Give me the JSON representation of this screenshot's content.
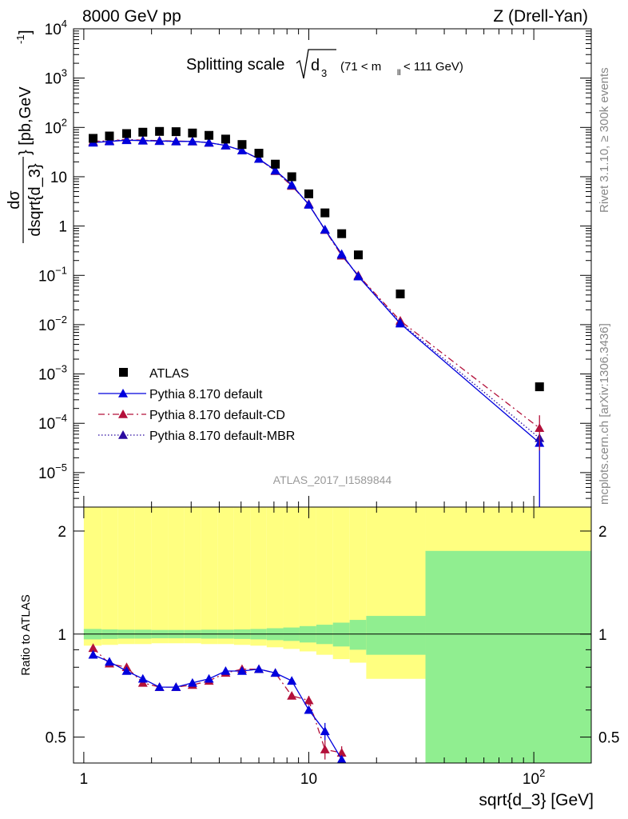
{
  "header": {
    "left": "8000 GeV pp",
    "right": "Z (Drell-Yan)"
  },
  "side_text": {
    "upper": "Rivet 3.1.10, ≥ 300k events",
    "lower": "mcplots.cern.ch [arXiv:1306.3436]"
  },
  "chart_data": [
    {
      "type": "scatter",
      "panel": "main",
      "title": "Splitting scale √d₃ (71 < mₗₗ < 111 GeV)",
      "title_parts": {
        "main": "Splitting scale",
        "sqrt_arg": "d",
        "sqrt_sub": "3",
        "cut_open": "(71 < m",
        "cut_sub": "ll",
        "cut_close": " < 111 GeV)"
      },
      "ylabel": "dσ / dsqrt{d_3} [pb,GeV⁻¹]",
      "ylabel_parts": {
        "num": "dσ",
        "den": "dsqrt{d_3}",
        "unit": "} [pb,GeV",
        "unit_sup": "-1",
        "unit_close": "]"
      },
      "xscale": "log",
      "yscale": "log",
      "xlim": [
        0.9,
        180
      ],
      "ylim": [
        2e-06,
        10000
      ],
      "legend_position": "center-left",
      "watermark": "ATLAS_2017_I1589844",
      "y_ticks": [
        {
          "v": 10000,
          "base": "10",
          "exp": "4"
        },
        {
          "v": 1000,
          "base": "10",
          "exp": "3"
        },
        {
          "v": 100,
          "base": "10",
          "exp": "2"
        },
        {
          "v": 10,
          "base": "10",
          "exp": ""
        },
        {
          "v": 1,
          "base": "1",
          "exp": ""
        },
        {
          "v": 0.1,
          "base": "10",
          "exp": "−1"
        },
        {
          "v": 0.01,
          "base": "10",
          "exp": "−2"
        },
        {
          "v": 0.001,
          "base": "10",
          "exp": "−3"
        },
        {
          "v": 0.0001,
          "base": "10",
          "exp": "−4"
        },
        {
          "v": 1e-05,
          "base": "10",
          "exp": "−5"
        }
      ],
      "series": [
        {
          "name": "ATLAS",
          "style": "data",
          "color": "#000000",
          "marker": "square",
          "x": [
            1.1,
            1.3,
            1.55,
            1.83,
            2.17,
            2.57,
            3.04,
            3.6,
            4.27,
            5.05,
            6.0,
            7.1,
            8.4,
            10.0,
            11.8,
            14.0,
            16.6,
            25.5,
            106
          ],
          "y": [
            60,
            67,
            75,
            80,
            83,
            82,
            77,
            69,
            58,
            45,
            30,
            18,
            10,
            4.5,
            1.85,
            0.7,
            0.26,
            0.042,
            0.00055
          ]
        },
        {
          "name": "Pythia 8.170 default",
          "style": "solid",
          "color": "#0000dd",
          "marker": "triangle",
          "x": [
            1.1,
            1.3,
            1.55,
            1.83,
            2.17,
            2.57,
            3.04,
            3.6,
            4.27,
            5.05,
            6.0,
            7.1,
            8.4,
            10.0,
            11.8,
            14.0,
            16.6,
            25.5,
            106
          ],
          "y": [
            49,
            52,
            55,
            54,
            53,
            52,
            52,
            49,
            43,
            34,
            23,
            13.5,
            6.9,
            2.7,
            0.85,
            0.27,
            0.095,
            0.0105,
            4e-05
          ]
        },
        {
          "name": "Pythia 8.170 default-CD",
          "style": "dashdot",
          "color": "#b3103a",
          "marker": "triangle",
          "x": [
            1.1,
            1.3,
            1.55,
            1.83,
            2.17,
            2.57,
            3.04,
            3.6,
            4.27,
            5.05,
            6.0,
            7.1,
            8.4,
            10.0,
            11.8,
            14.0,
            16.6,
            25.5,
            106
          ],
          "y": [
            52,
            54,
            57,
            55,
            54,
            53,
            52,
            49,
            43,
            34,
            23,
            13,
            6.5,
            2.8,
            0.83,
            0.25,
            0.1,
            0.012,
            8e-05
          ]
        },
        {
          "name": "Pythia 8.170 default-MBR",
          "style": "dotted",
          "color": "#2a0aa0",
          "marker": "triangle",
          "x": [
            1.1,
            1.3,
            1.55,
            1.83,
            2.17,
            2.57,
            3.04,
            3.6,
            4.27,
            5.05,
            6.0,
            7.1,
            8.4,
            10.0,
            11.8,
            14.0,
            16.6,
            25.5,
            106
          ],
          "y": [
            50,
            53,
            56,
            54,
            53,
            52,
            52,
            49,
            43,
            34,
            23,
            13.2,
            6.7,
            2.75,
            0.84,
            0.26,
            0.097,
            0.011,
            5e-05
          ]
        }
      ]
    },
    {
      "type": "scatter",
      "panel": "ratio",
      "xlabel": "sqrt{d_3} [GeV]",
      "ylabel": "Ratio to ATLAS",
      "xscale": "log",
      "yscale": "log",
      "xlim": [
        0.9,
        180
      ],
      "ylim": [
        0.42,
        2.35
      ],
      "x_ticks": [
        {
          "v": 1,
          "base": "1",
          "exp": ""
        },
        {
          "v": 10,
          "base": "10",
          "exp": ""
        },
        {
          "v": 100,
          "base": "10",
          "exp": "2"
        }
      ],
      "y_ticks": [
        {
          "v": 0.5,
          "label": "0.5"
        },
        {
          "v": 1,
          "label": "1"
        },
        {
          "v": 2,
          "label": "2"
        }
      ],
      "bands": {
        "x_edges": [
          1.0,
          1.2,
          1.42,
          1.68,
          2.0,
          2.37,
          2.8,
          3.32,
          3.93,
          4.65,
          5.5,
          6.5,
          7.7,
          9.1,
          10.8,
          12.8,
          15.2,
          18.0,
          33.0,
          180
        ],
        "stat_color": "#90ee90",
        "total_color": "#ffff80",
        "total_half_width": [
          0.075,
          0.07,
          0.065,
          0.065,
          0.06,
          0.06,
          0.06,
          0.065,
          0.065,
          0.07,
          0.075,
          0.085,
          0.095,
          0.11,
          0.13,
          0.155,
          0.175,
          0.26,
          1.2
        ],
        "stat_half_width": [
          0.035,
          0.032,
          0.03,
          0.03,
          0.028,
          0.028,
          0.028,
          0.03,
          0.03,
          0.032,
          0.035,
          0.04,
          0.045,
          0.055,
          0.065,
          0.08,
          0.1,
          0.13,
          0.75
        ]
      },
      "series": [
        {
          "name": "Pythia 8.170 default",
          "color": "#0000dd",
          "x": [
            1.1,
            1.3,
            1.55,
            1.83,
            2.17,
            2.57,
            3.04,
            3.6,
            4.27,
            5.05,
            6.0,
            7.1,
            8.4,
            10.0,
            11.8,
            14.0
          ],
          "y": [
            0.87,
            0.83,
            0.78,
            0.74,
            0.7,
            0.7,
            0.72,
            0.74,
            0.78,
            0.78,
            0.79,
            0.77,
            0.73,
            0.6,
            0.52,
            0.43
          ],
          "err": [
            0,
            0,
            0,
            0,
            0,
            0,
            0,
            0,
            0,
            0,
            0,
            0,
            0,
            0,
            0.03,
            0
          ]
        },
        {
          "name": "Pythia 8.170 default-CD",
          "color": "#b3103a",
          "x": [
            1.1,
            1.3,
            1.55,
            1.83,
            2.17,
            2.57,
            3.04,
            3.6,
            4.27,
            5.05,
            6.0,
            7.1,
            8.4,
            10.0,
            11.8,
            14.0
          ],
          "y": [
            0.91,
            0.82,
            0.8,
            0.72,
            0.7,
            0.7,
            0.71,
            0.73,
            0.77,
            0.79,
            0.79,
            0.77,
            0.66,
            0.64,
            0.46,
            0.45
          ],
          "err": [
            0,
            0,
            0,
            0,
            0,
            0,
            0,
            0,
            0,
            0,
            0,
            0,
            0,
            0.02,
            0.03,
            0.02
          ]
        }
      ]
    }
  ]
}
